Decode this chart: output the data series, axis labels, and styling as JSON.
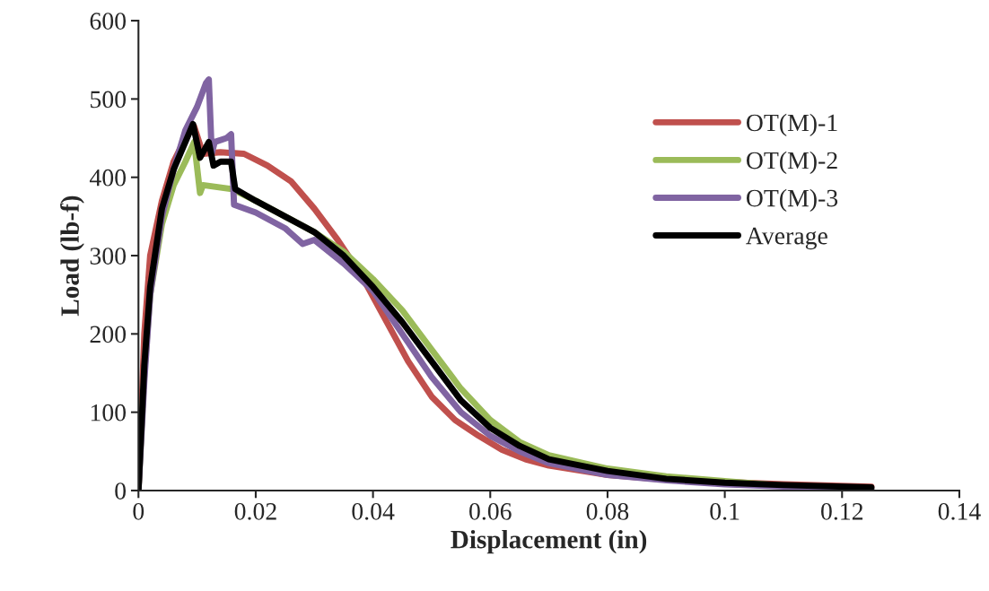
{
  "chart_data": {
    "type": "line",
    "xlabel": "Displacement (in)",
    "ylabel": "Load (lb-f)",
    "xlim": [
      0,
      0.14
    ],
    "ylim": [
      0,
      600
    ],
    "xticks": [
      0,
      0.02,
      0.04,
      0.06,
      0.08,
      0.1,
      0.12,
      0.14
    ],
    "yticks": [
      0,
      100,
      200,
      300,
      400,
      500,
      600
    ],
    "grid": false,
    "legend": "top right",
    "line_style": "solid",
    "marker": "none",
    "series": [
      {
        "name": "OT(M)-1",
        "color": "#c0504d",
        "x": [
          0,
          0.001,
          0.002,
          0.004,
          0.006,
          0.008,
          0.0095,
          0.011,
          0.014,
          0.018,
          0.022,
          0.026,
          0.03,
          0.034,
          0.038,
          0.042,
          0.046,
          0.05,
          0.054,
          0.058,
          0.062,
          0.066,
          0.07,
          0.08,
          0.09,
          0.1,
          0.11,
          0.125
        ],
        "values": [
          0,
          200,
          300,
          370,
          420,
          450,
          465,
          430,
          432,
          430,
          415,
          395,
          360,
          320,
          275,
          220,
          165,
          120,
          90,
          70,
          52,
          40,
          32,
          20,
          14,
          11,
          8,
          5
        ]
      },
      {
        "name": "OT(M)-2",
        "color": "#9bbb59",
        "x": [
          0,
          0.001,
          0.002,
          0.004,
          0.006,
          0.008,
          0.0095,
          0.0105,
          0.011,
          0.016,
          0.02,
          0.025,
          0.03,
          0.035,
          0.04,
          0.045,
          0.05,
          0.055,
          0.06,
          0.065,
          0.07,
          0.08,
          0.09,
          0.1,
          0.11,
          0.12,
          0.125
        ],
        "values": [
          0,
          150,
          250,
          340,
          390,
          420,
          445,
          380,
          390,
          385,
          370,
          350,
          330,
          305,
          270,
          230,
          180,
          130,
          90,
          62,
          45,
          28,
          18,
          12,
          6,
          3,
          2
        ]
      },
      {
        "name": "OT(M)-3",
        "color": "#8064a2",
        "x": [
          0,
          0.001,
          0.002,
          0.004,
          0.006,
          0.008,
          0.01,
          0.0115,
          0.012,
          0.0125,
          0.013,
          0.015,
          0.0158,
          0.0163,
          0.02,
          0.025,
          0.028,
          0.03,
          0.035,
          0.04,
          0.045,
          0.05,
          0.055,
          0.06,
          0.065,
          0.07,
          0.08,
          0.09,
          0.1,
          0.11,
          0.125
        ],
        "values": [
          0,
          140,
          250,
          350,
          410,
          460,
          490,
          520,
          525,
          430,
          445,
          450,
          455,
          365,
          355,
          335,
          315,
          320,
          290,
          255,
          200,
          145,
          100,
          70,
          50,
          35,
          20,
          13,
          8,
          5,
          2
        ]
      },
      {
        "name": "Average",
        "color": "#000000",
        "x": [
          0,
          0.001,
          0.002,
          0.004,
          0.006,
          0.008,
          0.0093,
          0.0105,
          0.012,
          0.0128,
          0.014,
          0.0158,
          0.0165,
          0.02,
          0.025,
          0.03,
          0.035,
          0.04,
          0.045,
          0.05,
          0.055,
          0.06,
          0.065,
          0.07,
          0.08,
          0.09,
          0.1,
          0.11,
          0.125
        ],
        "values": [
          0,
          160,
          260,
          360,
          410,
          445,
          468,
          425,
          445,
          415,
          420,
          420,
          385,
          370,
          350,
          330,
          300,
          260,
          215,
          165,
          115,
          80,
          57,
          40,
          25,
          15,
          10,
          7,
          4
        ]
      }
    ]
  }
}
